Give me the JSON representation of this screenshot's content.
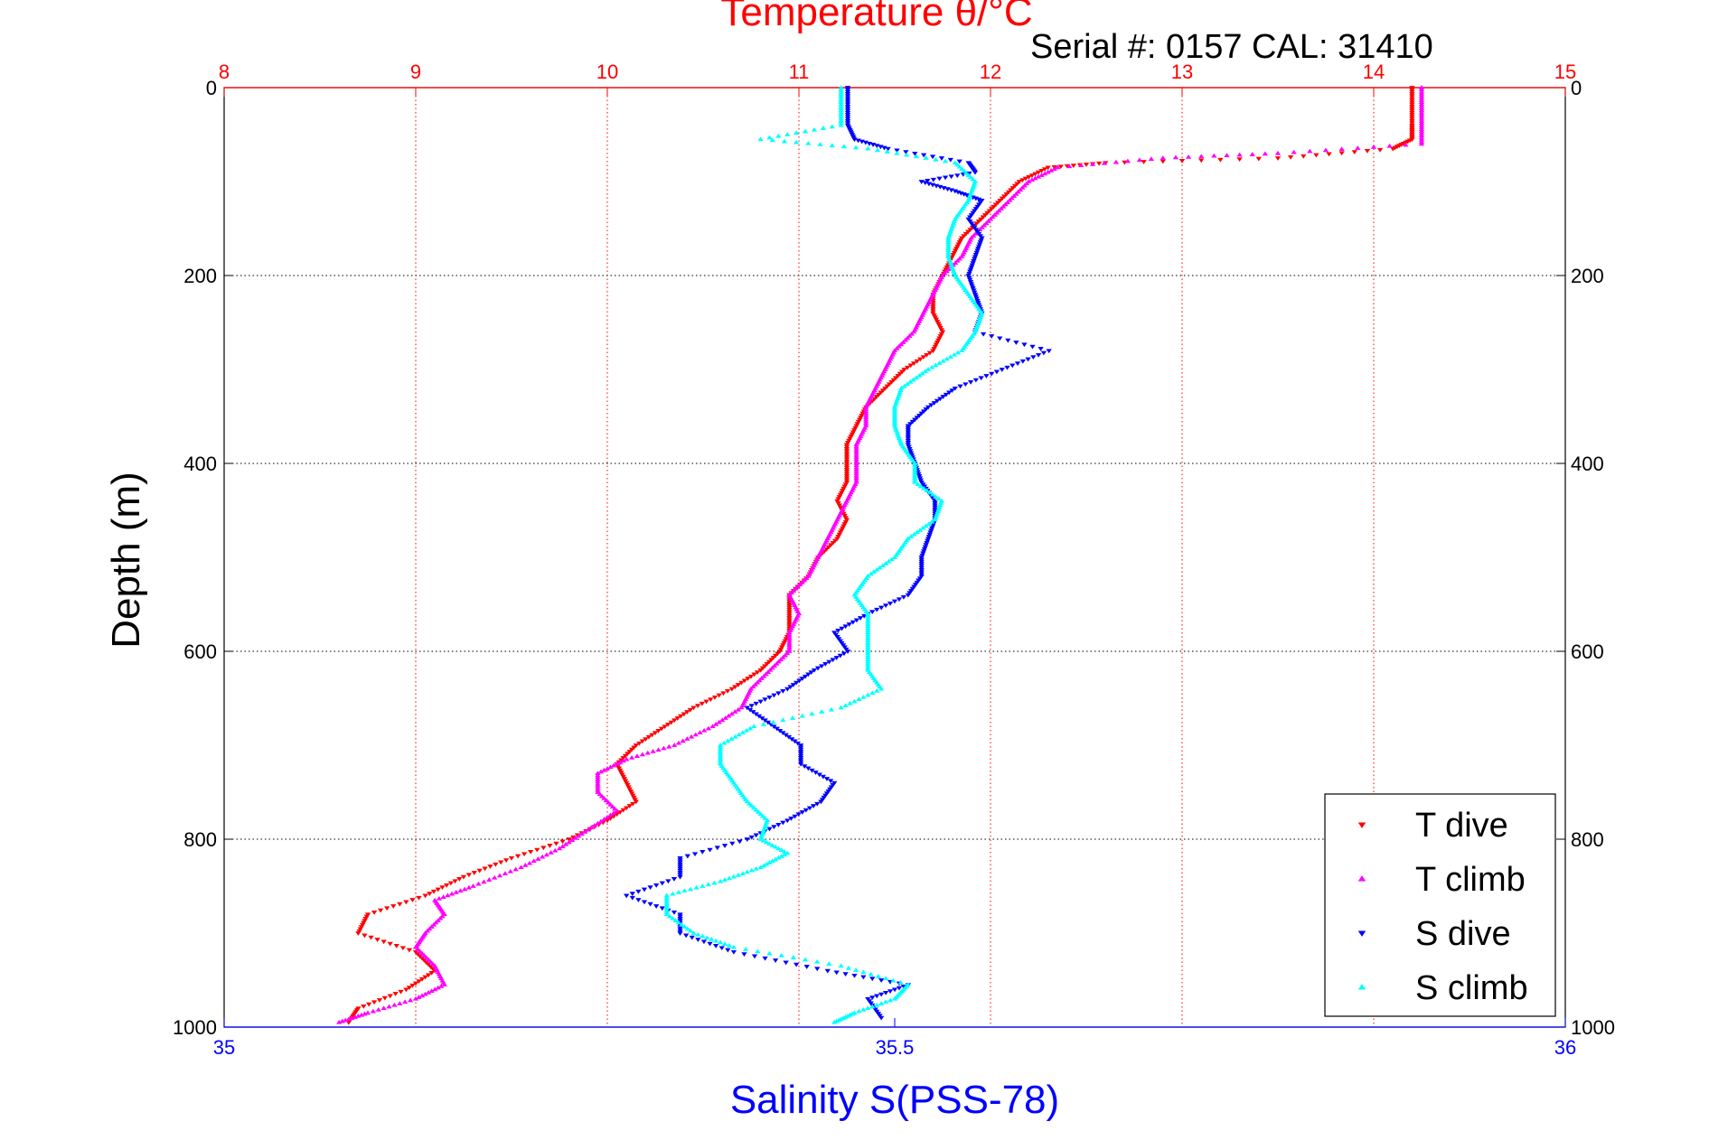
{
  "chart_data": {
    "type": "scatter",
    "title": "Temperature θ/°C",
    "subtitle": "Serial #: 0157  CAL: 31410",
    "ylabel": "Depth (m)",
    "xlabel_bottom": "Salinity S(PSS-78)",
    "temperature_axis": {
      "range": [
        8,
        15
      ],
      "ticks": [
        "8",
        "9",
        "10",
        "11",
        "12",
        "13",
        "14",
        "15"
      ],
      "color": "#ff0000"
    },
    "salinity_axis": {
      "range": [
        35,
        36
      ],
      "ticks": [
        "35",
        "35.5",
        "36"
      ],
      "color": "#0000ff"
    },
    "depth_axis": {
      "range": [
        0,
        1000
      ],
      "reversed": true,
      "ticks": [
        "0",
        "200",
        "400",
        "600",
        "800",
        "1000"
      ]
    },
    "grid": true,
    "legend_position": "bottom-right",
    "series": [
      {
        "name": "T dive",
        "axis": "temperature",
        "color": "#ff0000",
        "marker": "triangle-down",
        "points": [
          [
            14.2,
            0
          ],
          [
            14.2,
            20
          ],
          [
            14.2,
            40
          ],
          [
            14.2,
            55
          ],
          [
            14.1,
            65
          ],
          [
            13.5,
            75
          ],
          [
            12.6,
            80
          ],
          [
            12.3,
            85
          ],
          [
            12.15,
            100
          ],
          [
            12.05,
            120
          ],
          [
            11.95,
            140
          ],
          [
            11.85,
            160
          ],
          [
            11.8,
            180
          ],
          [
            11.75,
            200
          ],
          [
            11.7,
            220
          ],
          [
            11.7,
            240
          ],
          [
            11.75,
            260
          ],
          [
            11.7,
            280
          ],
          [
            11.55,
            300
          ],
          [
            11.45,
            320
          ],
          [
            11.35,
            340
          ],
          [
            11.3,
            360
          ],
          [
            11.25,
            380
          ],
          [
            11.25,
            400
          ],
          [
            11.25,
            420
          ],
          [
            11.2,
            440
          ],
          [
            11.25,
            460
          ],
          [
            11.2,
            480
          ],
          [
            11.1,
            500
          ],
          [
            11.05,
            520
          ],
          [
            10.95,
            540
          ],
          [
            10.95,
            560
          ],
          [
            10.95,
            580
          ],
          [
            10.9,
            600
          ],
          [
            10.8,
            620
          ],
          [
            10.65,
            640
          ],
          [
            10.45,
            660
          ],
          [
            10.3,
            680
          ],
          [
            10.15,
            700
          ],
          [
            10.05,
            720
          ],
          [
            10.1,
            740
          ],
          [
            10.15,
            760
          ],
          [
            10.0,
            780
          ],
          [
            9.8,
            800
          ],
          [
            9.5,
            820
          ],
          [
            9.25,
            840
          ],
          [
            9.05,
            860
          ],
          [
            8.75,
            880
          ],
          [
            8.7,
            900
          ],
          [
            9.0,
            920
          ],
          [
            9.1,
            940
          ],
          [
            8.95,
            960
          ],
          [
            8.7,
            980
          ],
          [
            8.65,
            995
          ]
        ]
      },
      {
        "name": "T climb",
        "axis": "temperature",
        "color": "#ff00ff",
        "marker": "triangle-up",
        "points": [
          [
            8.6,
            995
          ],
          [
            8.75,
            985
          ],
          [
            9.0,
            970
          ],
          [
            9.15,
            955
          ],
          [
            9.1,
            935
          ],
          [
            9.0,
            915
          ],
          [
            9.05,
            900
          ],
          [
            9.15,
            880
          ],
          [
            9.1,
            865
          ],
          [
            9.3,
            850
          ],
          [
            9.55,
            830
          ],
          [
            9.75,
            810
          ],
          [
            9.9,
            790
          ],
          [
            10.05,
            770
          ],
          [
            9.95,
            750
          ],
          [
            9.95,
            730
          ],
          [
            10.1,
            715
          ],
          [
            10.35,
            700
          ],
          [
            10.55,
            680
          ],
          [
            10.7,
            660
          ],
          [
            10.75,
            640
          ],
          [
            10.85,
            620
          ],
          [
            10.95,
            600
          ],
          [
            10.95,
            580
          ],
          [
            11.0,
            560
          ],
          [
            10.95,
            540
          ],
          [
            11.05,
            520
          ],
          [
            11.1,
            500
          ],
          [
            11.15,
            480
          ],
          [
            11.2,
            460
          ],
          [
            11.25,
            440
          ],
          [
            11.3,
            420
          ],
          [
            11.3,
            400
          ],
          [
            11.3,
            380
          ],
          [
            11.35,
            360
          ],
          [
            11.35,
            340
          ],
          [
            11.4,
            320
          ],
          [
            11.45,
            300
          ],
          [
            11.5,
            280
          ],
          [
            11.6,
            260
          ],
          [
            11.65,
            240
          ],
          [
            11.7,
            220
          ],
          [
            11.75,
            200
          ],
          [
            11.85,
            180
          ],
          [
            11.9,
            160
          ],
          [
            12.0,
            140
          ],
          [
            12.1,
            120
          ],
          [
            12.2,
            100
          ],
          [
            12.35,
            85
          ],
          [
            12.9,
            75
          ],
          [
            13.5,
            70
          ],
          [
            14.25,
            60
          ],
          [
            14.25,
            40
          ],
          [
            14.25,
            20
          ],
          [
            14.25,
            0
          ]
        ]
      },
      {
        "name": "S dive",
        "axis": "salinity",
        "color": "#0000ff",
        "marker": "triangle-down",
        "points": [
          [
            35.465,
            0
          ],
          [
            35.465,
            20
          ],
          [
            35.465,
            40
          ],
          [
            35.47,
            55
          ],
          [
            35.495,
            65
          ],
          [
            35.555,
            80
          ],
          [
            35.56,
            90
          ],
          [
            35.52,
            100
          ],
          [
            35.545,
            110
          ],
          [
            35.565,
            120
          ],
          [
            35.555,
            140
          ],
          [
            35.565,
            160
          ],
          [
            35.56,
            180
          ],
          [
            35.555,
            200
          ],
          [
            35.56,
            220
          ],
          [
            35.565,
            240
          ],
          [
            35.56,
            260
          ],
          [
            35.615,
            280
          ],
          [
            35.58,
            300
          ],
          [
            35.545,
            320
          ],
          [
            35.525,
            340
          ],
          [
            35.51,
            360
          ],
          [
            35.51,
            380
          ],
          [
            35.515,
            400
          ],
          [
            35.52,
            420
          ],
          [
            35.53,
            440
          ],
          [
            35.53,
            460
          ],
          [
            35.525,
            480
          ],
          [
            35.52,
            500
          ],
          [
            35.52,
            520
          ],
          [
            35.51,
            540
          ],
          [
            35.48,
            560
          ],
          [
            35.455,
            580
          ],
          [
            35.465,
            600
          ],
          [
            35.44,
            620
          ],
          [
            35.42,
            640
          ],
          [
            35.39,
            660
          ],
          [
            35.41,
            680
          ],
          [
            35.43,
            700
          ],
          [
            35.43,
            720
          ],
          [
            35.455,
            740
          ],
          [
            35.445,
            760
          ],
          [
            35.42,
            780
          ],
          [
            35.39,
            800
          ],
          [
            35.34,
            820
          ],
          [
            35.34,
            840
          ],
          [
            35.3,
            860
          ],
          [
            35.34,
            880
          ],
          [
            35.34,
            900
          ],
          [
            35.38,
            920
          ],
          [
            35.45,
            940
          ],
          [
            35.51,
            955
          ],
          [
            35.48,
            970
          ],
          [
            35.49,
            990
          ]
        ]
      },
      {
        "name": "S climb",
        "axis": "salinity",
        "color": "#00ffff",
        "marker": "triangle-up",
        "points": [
          [
            35.455,
            995
          ],
          [
            35.47,
            985
          ],
          [
            35.5,
            970
          ],
          [
            35.51,
            955
          ],
          [
            35.46,
            935
          ],
          [
            35.38,
            915
          ],
          [
            35.35,
            900
          ],
          [
            35.33,
            880
          ],
          [
            35.33,
            860
          ],
          [
            35.37,
            845
          ],
          [
            35.4,
            830
          ],
          [
            35.42,
            815
          ],
          [
            35.4,
            800
          ],
          [
            35.405,
            780
          ],
          [
            35.39,
            760
          ],
          [
            35.38,
            740
          ],
          [
            35.37,
            720
          ],
          [
            35.37,
            700
          ],
          [
            35.395,
            680
          ],
          [
            35.46,
            660
          ],
          [
            35.49,
            640
          ],
          [
            35.48,
            620
          ],
          [
            35.48,
            600
          ],
          [
            35.48,
            580
          ],
          [
            35.48,
            560
          ],
          [
            35.47,
            540
          ],
          [
            35.48,
            520
          ],
          [
            35.5,
            500
          ],
          [
            35.51,
            480
          ],
          [
            35.53,
            460
          ],
          [
            35.535,
            440
          ],
          [
            35.515,
            420
          ],
          [
            35.515,
            400
          ],
          [
            35.505,
            380
          ],
          [
            35.5,
            360
          ],
          [
            35.5,
            340
          ],
          [
            35.505,
            320
          ],
          [
            35.525,
            300
          ],
          [
            35.55,
            280
          ],
          [
            35.56,
            260
          ],
          [
            35.565,
            240
          ],
          [
            35.555,
            220
          ],
          [
            35.545,
            200
          ],
          [
            35.54,
            180
          ],
          [
            35.54,
            160
          ],
          [
            35.545,
            140
          ],
          [
            35.555,
            120
          ],
          [
            35.56,
            100
          ],
          [
            35.545,
            80
          ],
          [
            35.48,
            65
          ],
          [
            35.4,
            55
          ],
          [
            35.46,
            40
          ],
          [
            35.46,
            20
          ],
          [
            35.46,
            0
          ]
        ]
      }
    ]
  }
}
